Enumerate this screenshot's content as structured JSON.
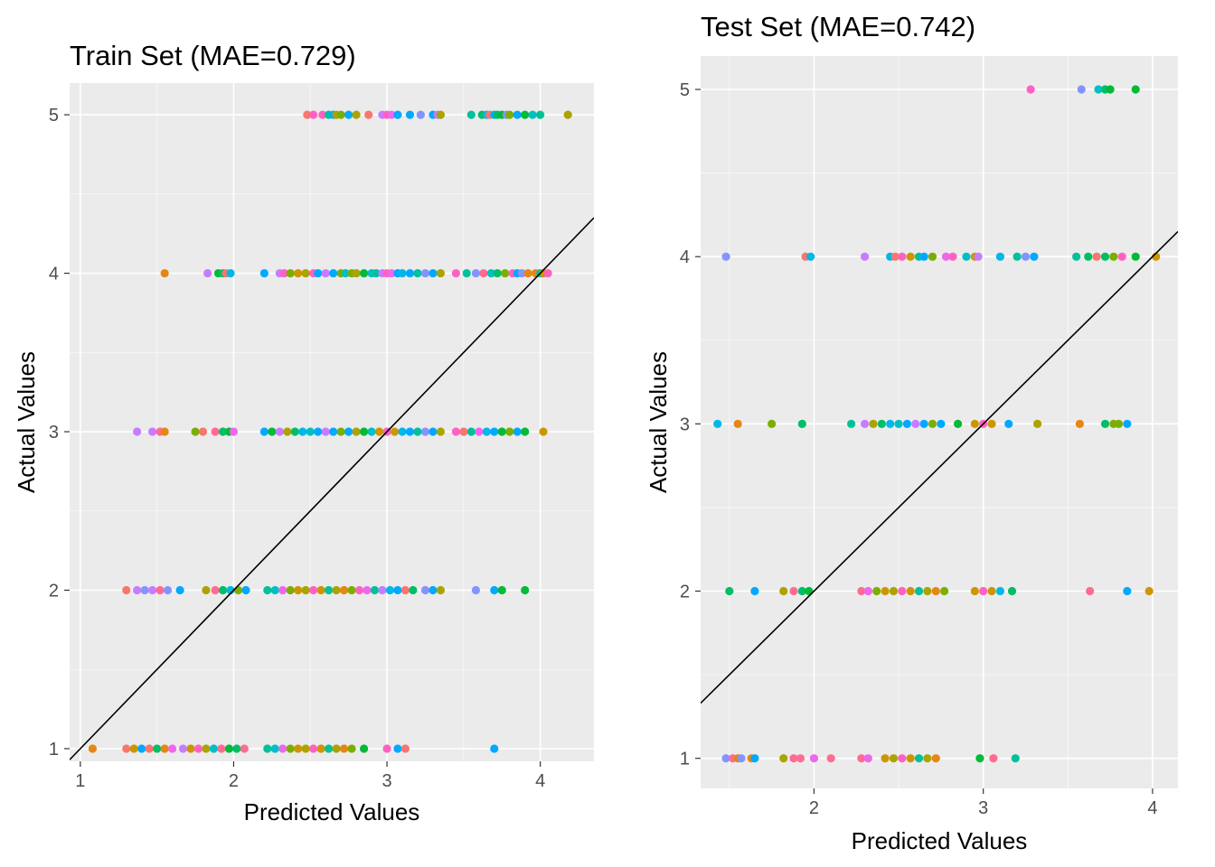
{
  "chart_data": [
    {
      "type": "scatter",
      "title": "Train Set (MAE=0.729)",
      "xlabel": "Predicted Values",
      "ylabel": "Actual Values",
      "xlim": [
        0.93,
        4.35
      ],
      "ylim": [
        0.92,
        5.2
      ],
      "xticks": [
        "1",
        "2",
        "3",
        "4"
      ],
      "yticks": [
        "1",
        "2",
        "3",
        "4",
        "5"
      ],
      "xtick_values": [
        1,
        2,
        3,
        4
      ],
      "ytick_values": [
        1,
        2,
        3,
        4,
        5
      ],
      "grid": true,
      "reference_line": "y = x",
      "background": "#EBEBEB",
      "legend": "none",
      "points": [
        {
          "y": 5,
          "x": [
            2.48,
            2.52,
            2.58,
            2.62,
            2.65,
            2.67,
            2.7,
            2.75,
            2.8,
            2.88,
            2.97,
            3.0,
            3.03,
            3.07,
            3.15,
            3.22,
            3.3,
            3.33,
            3.35,
            3.55,
            3.62,
            3.65,
            3.67,
            3.7,
            3.72,
            3.75,
            3.78,
            3.8,
            3.85,
            3.9,
            3.95,
            4.0,
            4.18
          ]
        },
        {
          "y": 4,
          "x": [
            1.55,
            1.83,
            1.9,
            1.93,
            1.95,
            1.98,
            2.2,
            2.3,
            2.33,
            2.37,
            2.42,
            2.47,
            2.52,
            2.55,
            2.6,
            2.65,
            2.7,
            2.73,
            2.77,
            2.8,
            2.85,
            2.9,
            2.93,
            2.97,
            3.0,
            3.03,
            3.07,
            3.1,
            3.15,
            3.2,
            3.25,
            3.3,
            3.35,
            3.45,
            3.52,
            3.58,
            3.63,
            3.68,
            3.72,
            3.77,
            3.82,
            3.85,
            3.88,
            3.92,
            3.97,
            4.0,
            4.02,
            4.05
          ]
        },
        {
          "y": 3,
          "x": [
            1.37,
            1.47,
            1.52,
            1.55,
            1.75,
            1.8,
            1.88,
            1.93,
            1.97,
            2.0,
            2.2,
            2.25,
            2.3,
            2.35,
            2.4,
            2.45,
            2.5,
            2.55,
            2.6,
            2.65,
            2.7,
            2.75,
            2.8,
            2.85,
            2.9,
            2.95,
            3.0,
            3.05,
            3.1,
            3.15,
            3.2,
            3.25,
            3.3,
            3.35,
            3.45,
            3.5,
            3.55,
            3.6,
            3.65,
            3.7,
            3.75,
            3.8,
            3.85,
            3.9,
            4.02
          ]
        },
        {
          "y": 2,
          "x": [
            1.3,
            1.37,
            1.42,
            1.47,
            1.52,
            1.57,
            1.65,
            1.82,
            1.88,
            1.93,
            1.98,
            2.03,
            2.08,
            2.22,
            2.27,
            2.32,
            2.37,
            2.42,
            2.47,
            2.52,
            2.57,
            2.62,
            2.67,
            2.72,
            2.77,
            2.82,
            2.87,
            2.92,
            2.97,
            3.02,
            3.07,
            3.12,
            3.17,
            3.25,
            3.3,
            3.35,
            3.58,
            3.7,
            3.75,
            3.9
          ]
        },
        {
          "y": 1,
          "x": [
            1.08,
            1.3,
            1.35,
            1.4,
            1.45,
            1.5,
            1.55,
            1.6,
            1.67,
            1.72,
            1.77,
            1.82,
            1.87,
            1.92,
            1.97,
            2.02,
            2.07,
            2.22,
            2.27,
            2.32,
            2.37,
            2.42,
            2.47,
            2.52,
            2.57,
            2.62,
            2.67,
            2.72,
            2.77,
            2.85,
            3.0,
            3.07,
            3.12,
            3.7
          ]
        }
      ]
    },
    {
      "type": "scatter",
      "title": "Test Set (MAE=0.742)",
      "xlabel": "Predicted Values",
      "ylabel": "Actual Values",
      "xlim": [
        1.33,
        4.15
      ],
      "ylim": [
        0.82,
        5.2
      ],
      "xticks": [
        "2",
        "3",
        "4"
      ],
      "yticks": [
        "1",
        "2",
        "3",
        "4",
        "5"
      ],
      "xtick_values": [
        2,
        3,
        4
      ],
      "ytick_values": [
        1,
        2,
        3,
        4,
        5
      ],
      "grid": true,
      "reference_line": "y = x",
      "background": "#EBEBEB",
      "legend": "none",
      "points": [
        {
          "y": 5,
          "x": [
            3.28,
            3.58,
            3.68,
            3.72,
            3.75,
            3.9
          ]
        },
        {
          "y": 4,
          "x": [
            1.48,
            1.95,
            1.98,
            2.3,
            2.45,
            2.48,
            2.52,
            2.57,
            2.62,
            2.65,
            2.7,
            2.78,
            2.82,
            2.9,
            2.95,
            2.97,
            3.1,
            3.2,
            3.25,
            3.3,
            3.55,
            3.62,
            3.67,
            3.72,
            3.77,
            3.82,
            3.9,
            4.02
          ]
        },
        {
          "y": 3,
          "x": [
            1.43,
            1.55,
            1.75,
            1.93,
            2.22,
            2.3,
            2.35,
            2.4,
            2.45,
            2.5,
            2.55,
            2.6,
            2.65,
            2.7,
            2.75,
            2.85,
            2.95,
            3.0,
            3.05,
            3.15,
            3.32,
            3.57,
            3.72,
            3.77,
            3.8,
            3.85
          ]
        },
        {
          "y": 2,
          "x": [
            1.5,
            1.65,
            1.82,
            1.88,
            1.93,
            1.97,
            2.28,
            2.32,
            2.37,
            2.42,
            2.47,
            2.52,
            2.57,
            2.62,
            2.67,
            2.72,
            2.77,
            2.95,
            3.0,
            3.05,
            3.1,
            3.17,
            3.63,
            3.85,
            3.98
          ]
        },
        {
          "y": 1,
          "x": [
            1.48,
            1.52,
            1.55,
            1.57,
            1.63,
            1.65,
            1.82,
            1.88,
            1.92,
            2.0,
            2.1,
            2.28,
            2.32,
            2.42,
            2.47,
            2.52,
            2.57,
            2.62,
            2.67,
            2.72,
            2.98,
            3.06,
            3.19
          ]
        }
      ]
    }
  ],
  "point_palette": [
    "#00A9FF",
    "#00B8E7",
    "#00BFC4",
    "#00C19A",
    "#00BE67",
    "#00BA38",
    "#7CAE00",
    "#ABA300",
    "#CD9600",
    "#E68613",
    "#F8766D",
    "#FF61C3",
    "#FF6C91",
    "#ED68ED",
    "#C77CFF",
    "#8494FF"
  ],
  "colors": {
    "panel_background": "#EBEBEB",
    "grid": "#FFFFFF",
    "reference_line": "#000000",
    "tick_text": "#4D4D4D",
    "tick_mark": "#333333"
  }
}
